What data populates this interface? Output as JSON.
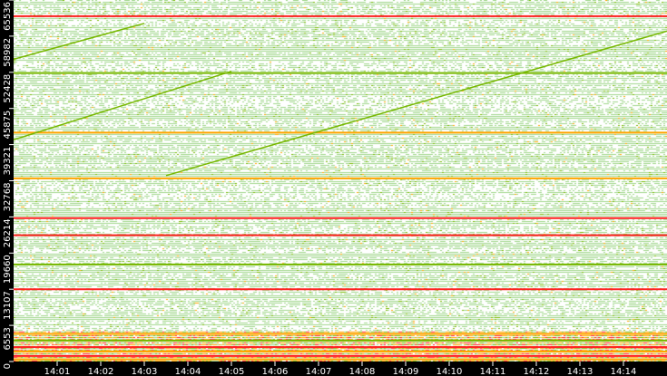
{
  "chart_data": {
    "type": "scatter",
    "title": "",
    "xlabel": "",
    "ylabel": "",
    "xlim": [
      "14:00",
      "14:15"
    ],
    "ylim": [
      0,
      65536
    ],
    "x_ticks": [
      "14:01",
      "14:02",
      "14:03",
      "14:04",
      "14:05",
      "14:06",
      "14:07",
      "14:08",
      "14:09",
      "14:10",
      "14:11",
      "14:12",
      "14:13",
      "14:14"
    ],
    "y_ticks": [
      0,
      6553,
      13107,
      19660,
      26214,
      32768,
      39321,
      45875,
      52428,
      58982,
      65536
    ],
    "background": "#000000",
    "colors": {
      "low": "#9fd68a",
      "mid": "#77b800",
      "high": "#ffa500",
      "max": "#ff2020"
    },
    "bands": [
      {
        "port": 62600,
        "level": "max"
      },
      {
        "port": 52300,
        "level": "mid"
      },
      {
        "port": 41500,
        "level": "high"
      },
      {
        "port": 33200,
        "level": "high"
      },
      {
        "port": 26000,
        "level": "max"
      },
      {
        "port": 22900,
        "level": "max"
      },
      {
        "port": 17600,
        "level": "mid"
      },
      {
        "port": 13100,
        "level": "max"
      },
      {
        "port": 5000,
        "level": "high"
      },
      {
        "port": 3800,
        "level": "mid"
      },
      {
        "port": 2600,
        "level": "max"
      },
      {
        "port": 1800,
        "level": "high"
      },
      {
        "port": 1000,
        "level": "max"
      },
      {
        "port": 400,
        "level": "high"
      }
    ],
    "scan_lines": [
      {
        "start": [
          "14:00",
          54800
        ],
        "end": [
          "14:03",
          61300
        ]
      },
      {
        "start": [
          "14:03:30",
          33700
        ],
        "end": [
          "14:15",
          59900
        ]
      },
      {
        "start": [
          "14:00",
          40200
        ],
        "end": [
          "14:05",
          52600
        ]
      }
    ]
  }
}
